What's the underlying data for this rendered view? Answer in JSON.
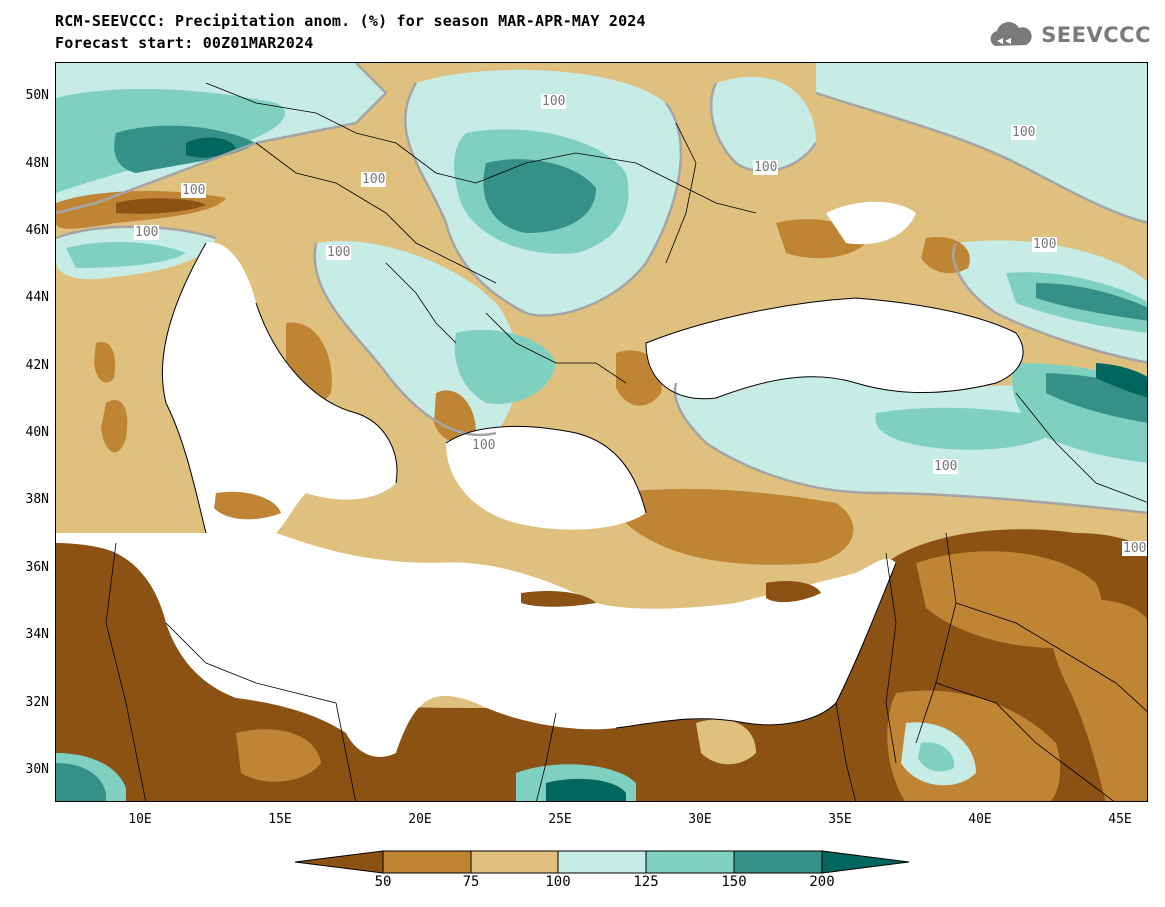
{
  "title": {
    "line1": "RCM-SEEVCCC: Precipitation anom. (%) for season MAR-APR-MAY 2024",
    "line2": "Forecast start: 00Z01MAR2024"
  },
  "logo": {
    "text": "SEEVCCC",
    "icon": "cloud-icon"
  },
  "axes": {
    "y_labels": [
      "50N",
      "48N",
      "46N",
      "44N",
      "42N",
      "40N",
      "38N",
      "36N",
      "34N",
      "32N",
      "30N"
    ],
    "x_labels": [
      "10E",
      "15E",
      "20E",
      "25E",
      "30E",
      "35E",
      "40E",
      "45E"
    ]
  },
  "contour_labels": [
    "100",
    "100",
    "100",
    "100",
    "100",
    "100",
    "100",
    "100",
    "100",
    "100",
    "100"
  ],
  "colorbar": {
    "labels": [
      "50",
      "75",
      "100",
      "125",
      "150",
      "200"
    ],
    "colors": [
      "#8b5214",
      "#bf8434",
      "#dfc07e",
      "#c7ebe5",
      "#7fd0c1",
      "#359188",
      "#01665e"
    ]
  },
  "colors": {
    "land_mask": "#ffffff",
    "contour_line": "#a5a5a5",
    "border_line": "#000000"
  }
}
